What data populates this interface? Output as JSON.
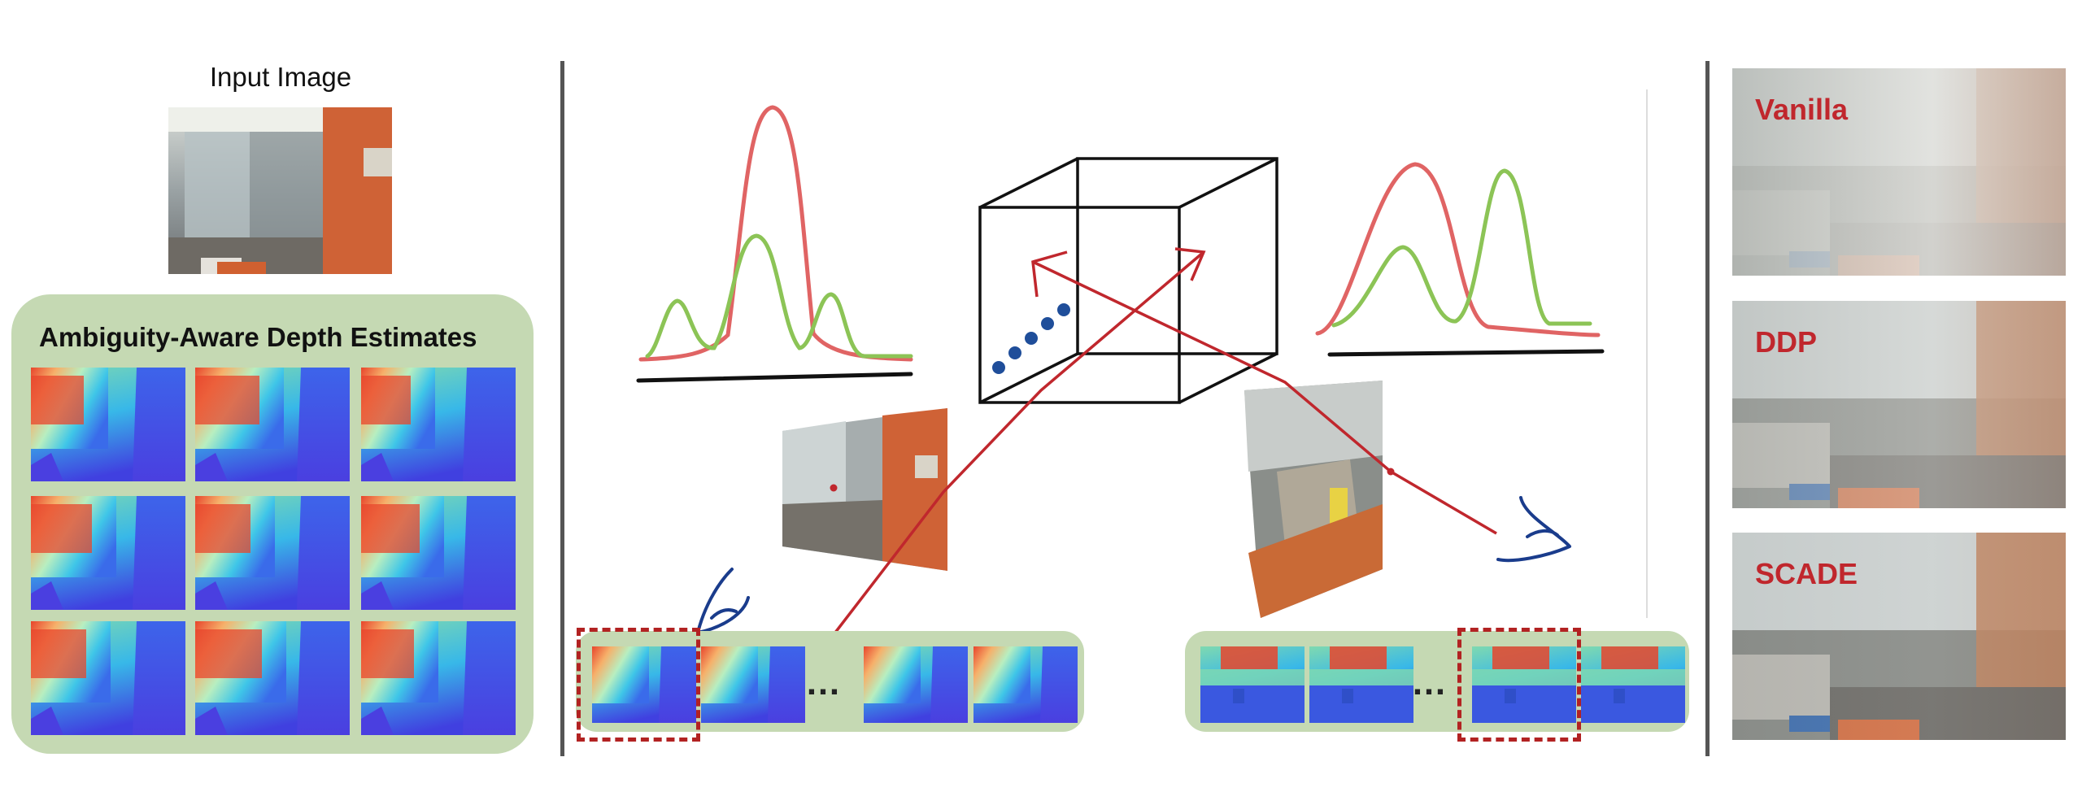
{
  "left_panel": {
    "input_title": "Input Image",
    "estimates_title": "Ambiguity-Aware Depth Estimates"
  },
  "middle_panel": {
    "ellipsis": "…"
  },
  "right_panel": {
    "methods": [
      {
        "label": "Vanilla"
      },
      {
        "label": "DDP"
      },
      {
        "label": "SCADE"
      }
    ]
  },
  "colors": {
    "green_box": "#c5d9b3",
    "red_curve": "#e06464",
    "green_curve": "#8cc456",
    "ray_red": "#c0272d",
    "eye_blue": "#1a3c8c",
    "sample_blue": "#1f4e9a",
    "dashed_box": "#b22222"
  }
}
